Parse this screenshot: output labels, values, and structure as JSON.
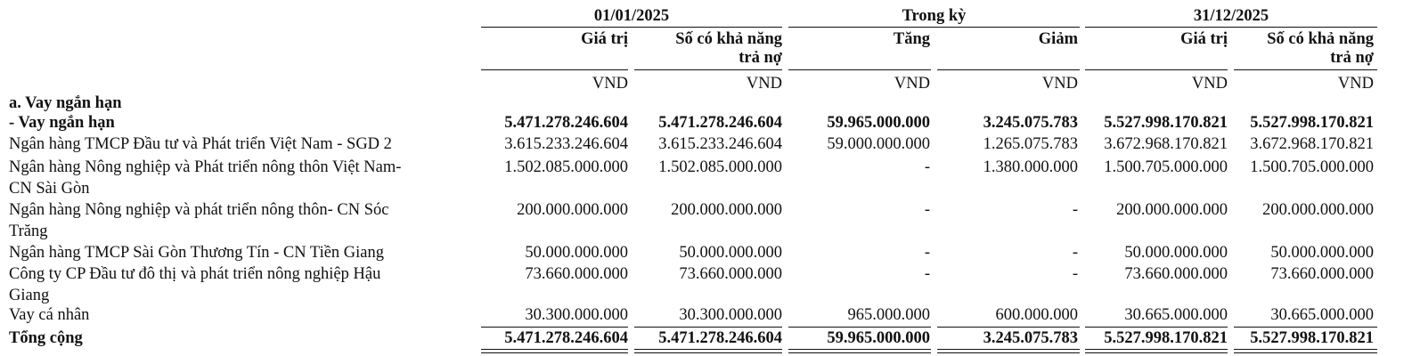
{
  "header": {
    "groups": [
      "01/01/2025",
      "Trong kỳ",
      "31/12/2025"
    ],
    "col_labels": [
      [
        "Giá trị"
      ],
      [
        "Số có khả năng",
        "trả nợ"
      ],
      [
        "Tăng"
      ],
      [
        "Giảm"
      ],
      [
        "Giá trị"
      ],
      [
        "Số có khả năng",
        "trả nợ"
      ]
    ],
    "units": [
      "VND",
      "VND",
      "VND",
      "VND",
      "VND",
      "VND"
    ]
  },
  "section_title": "a. Vay ngắn hạn",
  "rows": [
    {
      "label": [
        "- Vay ngắn hạn"
      ],
      "values": [
        "5.471.278.246.604",
        "5.471.278.246.604",
        "59.965.000.000",
        "3.245.075.783",
        "5.527.998.170.821",
        "5.527.998.170.821"
      ]
    },
    {
      "label": [
        "Ngân hàng TMCP Đầu tư và Phát triển Việt Nam - SGD 2"
      ],
      "values": [
        "3.615.233.246.604",
        "3.615.233.246.604",
        "59.000.000.000",
        "1.265.075.783",
        "3.672.968.170.821",
        "3.672.968.170.821"
      ]
    },
    {
      "label": [
        "Ngân hàng Nông nghiệp và Phát triển nông thôn Việt Nam-",
        "CN Sài Gòn"
      ],
      "values": [
        "1.502.085.000.000",
        "1.502.085.000.000",
        "-",
        "1.380.000.000",
        "1.500.705.000.000",
        "1.500.705.000.000"
      ]
    },
    {
      "label": [
        "Ngân hàng Nông nghiệp và phát triển nông thôn- CN Sóc",
        "Trăng"
      ],
      "values": [
        "200.000.000.000",
        "200.000.000.000",
        "-",
        "-",
        "200.000.000.000",
        "200.000.000.000"
      ]
    },
    {
      "label": [
        "Ngân hàng TMCP Sài Gòn Thương Tín - CN Tiền Giang"
      ],
      "values": [
        "50.000.000.000",
        "50.000.000.000",
        "-",
        "-",
        "50.000.000.000",
        "50.000.000.000"
      ]
    },
    {
      "label": [
        "Công ty CP Đầu tư đô thị và phát triển nông nghiệp Hậu",
        "Giang"
      ],
      "values": [
        "73.660.000.000",
        "73.660.000.000",
        "-",
        "-",
        "73.660.000.000",
        "73.660.000.000"
      ]
    },
    {
      "label": [
        "Vay cá nhân"
      ],
      "values": [
        "30.300.000.000",
        "30.300.000.000",
        "965.000.000",
        "600.000.000",
        "30.665.000.000",
        "30.665.000.000"
      ]
    }
  ],
  "total": {
    "label": "Tổng cộng",
    "values": [
      "5.471.278.246.604",
      "5.471.278.246.604",
      "59.965.000.000",
      "3.245.075.783",
      "5.527.998.170.821",
      "5.527.998.170.821"
    ]
  }
}
